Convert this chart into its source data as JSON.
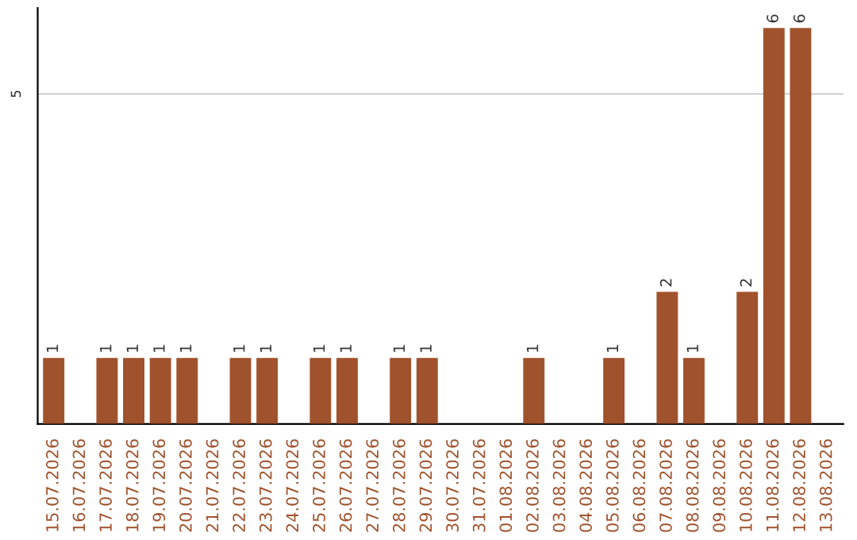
{
  "chart_data": {
    "type": "bar",
    "categories": [
      "15.07.2026",
      "16.07.2026",
      "17.07.2026",
      "18.07.2026",
      "19.07.2026",
      "20.07.2026",
      "21.07.2026",
      "22.07.2026",
      "23.07.2026",
      "24.07.2026",
      "25.07.2026",
      "26.07.2026",
      "27.07.2026",
      "28.07.2026",
      "29.07.2026",
      "30.07.2026",
      "31.07.2026",
      "01.08.2026",
      "02.08.2026",
      "03.08.2026",
      "04.08.2026",
      "05.08.2026",
      "06.08.2026",
      "07.08.2026",
      "08.08.2026",
      "09.08.2026",
      "10.08.2026",
      "11.08.2026",
      "12.08.2026",
      "13.08.2026"
    ],
    "values": [
      1,
      0,
      1,
      1,
      1,
      1,
      0,
      1,
      1,
      0,
      1,
      1,
      0,
      1,
      1,
      0,
      0,
      0,
      1,
      0,
      0,
      1,
      0,
      2,
      1,
      0,
      2,
      6,
      6,
      0
    ],
    "value_labels": [
      "1",
      null,
      "1",
      "1",
      "1",
      "1",
      null,
      "1",
      "1",
      null,
      "1",
      "1",
      null,
      "1",
      "1",
      null,
      null,
      null,
      "1",
      null,
      null,
      "1",
      null,
      "2",
      "1",
      null,
      "2",
      "6",
      "6",
      null
    ],
    "color": "#a0522d",
    "ylim": [
      0,
      6.3
    ],
    "yticks": [
      5
    ],
    "grid": "y"
  }
}
